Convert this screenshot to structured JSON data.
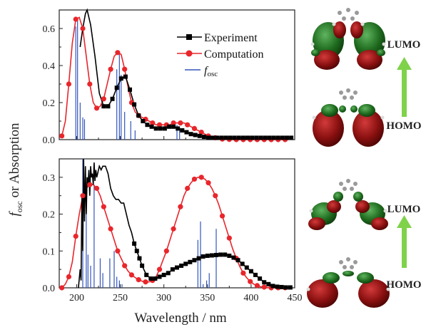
{
  "ylabel_main": "f",
  "ylabel_sub": "osc",
  "ylabel_rest": " or Absorption",
  "xlabel": "Wavelength / nm",
  "legend": {
    "experiment": "Experiment",
    "computation": "Computation",
    "fosc_main": "f",
    "fosc_sub": "osc"
  },
  "orbital_labels": {
    "lumo_top": "LUMO",
    "homo_top": "HOMO",
    "lumo_bottom": "LUMO",
    "homo_bottom": "HOMO"
  },
  "colors": {
    "experiment": "#000000",
    "computation": "#e8262b",
    "fosc": "#3355bb",
    "arrow": "#7fd24a",
    "orbital_red": "#8a1010",
    "orbital_green": "#1f6b1f"
  },
  "chart_data": [
    {
      "type": "line",
      "panel": "top",
      "xlim": [
        180,
        450
      ],
      "ylim": [
        0,
        0.7
      ],
      "xticks": [],
      "yticks": [
        "0.0",
        "0.2",
        "0.4",
        "0.6"
      ],
      "ytick_values": [
        0,
        0.2,
        0.4,
        0.6
      ],
      "series": [
        {
          "name": "Experiment",
          "x": [
            204,
            207,
            210,
            212,
            216,
            221,
            226,
            231,
            236,
            241,
            246,
            251,
            256,
            261,
            266,
            271,
            276,
            281,
            286,
            291,
            296,
            301,
            306,
            311,
            316,
            321,
            326,
            331,
            336,
            341,
            346,
            351,
            356,
            361,
            366,
            371,
            376,
            381,
            386,
            391,
            396,
            401,
            406,
            411,
            416,
            421,
            426,
            431,
            436,
            441,
            446
          ],
          "y": [
            0.5,
            0.6,
            0.68,
            0.7,
            0.62,
            0.45,
            0.25,
            0.18,
            0.18,
            0.22,
            0.28,
            0.33,
            0.34,
            0.27,
            0.19,
            0.13,
            0.1,
            0.08,
            0.07,
            0.06,
            0.06,
            0.06,
            0.07,
            0.07,
            0.06,
            0.05,
            0.04,
            0.03,
            0.025,
            0.02,
            0.015,
            0.01,
            0.01,
            0.01,
            0.01,
            0.01,
            0.01,
            0.01,
            0.01,
            0.01,
            0.01,
            0.01,
            0.01,
            0.01,
            0.01,
            0.01,
            0.01,
            0.01,
            0.01,
            0.01,
            0.01
          ]
        },
        {
          "name": "Computation",
          "x": [
            183,
            187,
            191,
            195,
            199,
            203,
            207,
            211,
            215,
            219,
            223,
            227,
            231,
            235,
            239,
            243,
            247,
            251,
            255,
            259,
            263,
            267,
            271,
            275,
            279,
            283,
            287,
            291,
            295,
            299,
            303,
            307,
            311,
            315,
            319,
            323,
            327,
            331,
            335,
            339,
            343,
            347,
            351,
            355,
            359,
            363,
            367,
            371,
            375,
            379,
            383,
            387,
            391,
            395,
            399,
            403,
            407,
            411,
            415,
            419,
            423,
            427,
            431,
            435,
            439,
            443
          ],
          "y": [
            0.02,
            0.1,
            0.3,
            0.52,
            0.65,
            0.66,
            0.6,
            0.45,
            0.3,
            0.2,
            0.17,
            0.18,
            0.22,
            0.3,
            0.38,
            0.45,
            0.47,
            0.46,
            0.38,
            0.28,
            0.2,
            0.15,
            0.13,
            0.12,
            0.11,
            0.1,
            0.09,
            0.08,
            0.08,
            0.08,
            0.08,
            0.08,
            0.09,
            0.09,
            0.09,
            0.09,
            0.08,
            0.07,
            0.06,
            0.05,
            0.04,
            0.03,
            0.02,
            0.015,
            0.01,
            0.005,
            0.003,
            0.002,
            0.001,
            0,
            0,
            0,
            0,
            0,
            0,
            0,
            0,
            0,
            0,
            0,
            0,
            0,
            0,
            0,
            0,
            0
          ]
        },
        {
          "name": "fosc",
          "type": "stick",
          "x": [
            199,
            201,
            204,
            207,
            209,
            246,
            249,
            251,
            255,
            262,
            267,
            315,
            318
          ],
          "y": [
            0.61,
            0.65,
            0.2,
            0.12,
            0.11,
            0.38,
            0.47,
            0.35,
            0.15,
            0.1,
            0.05,
            0.08,
            0.06
          ]
        }
      ]
    },
    {
      "type": "line",
      "panel": "bottom",
      "xlim": [
        180,
        450
      ],
      "ylim": [
        0,
        0.35
      ],
      "xticks": [
        "200",
        "250",
        "300",
        "350",
        "400",
        "450"
      ],
      "xtick_values": [
        200,
        250,
        300,
        350,
        400,
        450
      ],
      "yticks": [
        "0.0",
        "0.1",
        "0.2",
        "0.3"
      ],
      "ytick_values": [
        0,
        0.1,
        0.2,
        0.3
      ],
      "series": [
        {
          "name": "Experiment",
          "x": [
            202,
            204,
            205,
            206,
            207,
            208,
            209,
            210,
            211,
            212,
            213,
            214,
            215,
            216,
            217,
            218,
            219,
            220,
            221,
            222,
            223,
            224,
            225,
            226,
            228,
            230,
            233,
            236,
            239,
            242,
            245,
            248,
            251,
            254,
            257,
            260,
            263,
            266,
            269,
            272,
            275,
            280,
            285,
            290,
            295,
            300,
            305,
            310,
            315,
            320,
            325,
            330,
            335,
            340,
            345,
            350,
            355,
            360,
            365,
            370,
            375,
            380,
            385,
            390,
            395,
            400,
            405,
            410,
            415,
            420,
            425,
            430,
            435,
            440,
            445
          ],
          "y": [
            0.0,
            0.05,
            0.02,
            0.25,
            0.1,
            0.35,
            0.18,
            0.33,
            0.2,
            0.3,
            0.28,
            0.32,
            0.25,
            0.33,
            0.3,
            0.31,
            0.28,
            0.34,
            0.29,
            0.32,
            0.3,
            0.31,
            0.32,
            0.33,
            0.32,
            0.33,
            0.33,
            0.31,
            0.27,
            0.25,
            0.24,
            0.24,
            0.23,
            0.23,
            0.2,
            0.17,
            0.15,
            0.12,
            0.1,
            0.08,
            0.06,
            0.035,
            0.025,
            0.025,
            0.03,
            0.035,
            0.04,
            0.05,
            0.055,
            0.06,
            0.065,
            0.07,
            0.075,
            0.08,
            0.085,
            0.087,
            0.088,
            0.089,
            0.09,
            0.09,
            0.087,
            0.082,
            0.075,
            0.065,
            0.055,
            0.045,
            0.035,
            0.025,
            0.015,
            0.01,
            0.005,
            0.003,
            0.002,
            0.001,
            0.001
          ]
        },
        {
          "name": "Computation",
          "x": [
            183,
            187,
            191,
            195,
            199,
            203,
            207,
            211,
            215,
            219,
            223,
            227,
            231,
            235,
            239,
            243,
            247,
            251,
            255,
            259,
            263,
            267,
            271,
            275,
            279,
            283,
            287,
            291,
            295,
            299,
            303,
            307,
            311,
            315,
            319,
            323,
            327,
            331,
            335,
            339,
            343,
            347,
            351,
            355,
            359,
            363,
            367,
            371,
            375,
            379,
            383,
            387,
            391,
            395,
            399,
            403,
            407,
            411,
            415,
            419,
            423,
            427,
            431,
            435,
            439,
            443
          ],
          "y": [
            0.0,
            0.01,
            0.03,
            0.07,
            0.14,
            0.2,
            0.25,
            0.27,
            0.28,
            0.28,
            0.27,
            0.25,
            0.22,
            0.19,
            0.16,
            0.13,
            0.1,
            0.08,
            0.06,
            0.045,
            0.035,
            0.028,
            0.022,
            0.018,
            0.016,
            0.016,
            0.02,
            0.03,
            0.05,
            0.075,
            0.1,
            0.13,
            0.16,
            0.19,
            0.22,
            0.25,
            0.27,
            0.285,
            0.295,
            0.3,
            0.3,
            0.295,
            0.285,
            0.27,
            0.25,
            0.225,
            0.195,
            0.165,
            0.135,
            0.105,
            0.08,
            0.058,
            0.04,
            0.027,
            0.017,
            0.01,
            0.006,
            0.003,
            0.002,
            0.001,
            0,
            0,
            0,
            0,
            0,
            0
          ]
        },
        {
          "name": "fosc",
          "type": "stick",
          "x": [
            207,
            211,
            213,
            216,
            220,
            227,
            230,
            238,
            243,
            246,
            249,
            252,
            339,
            342,
            345,
            349,
            352,
            360
          ],
          "y": [
            0.35,
            0.25,
            0.09,
            0.06,
            0.28,
            0.08,
            0.04,
            0.08,
            0.1,
            0.03,
            0.02,
            0.01,
            0.13,
            0.18,
            0.01,
            0.02,
            0.04,
            0.16
          ]
        }
      ]
    }
  ]
}
